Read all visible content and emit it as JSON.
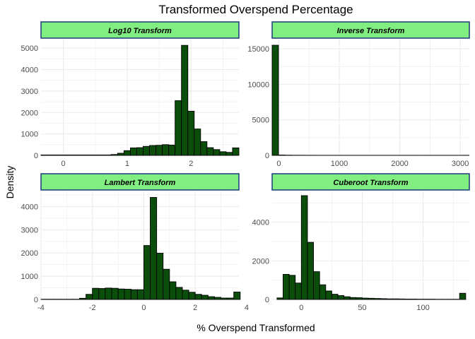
{
  "chart_data": {
    "type": "bar",
    "title": "Transformed Overspend Percentage",
    "xlabel": "% Overspend Transformed",
    "ylabel": "Density",
    "grid": true,
    "colors": {
      "bar_fill": "#0b4d0b",
      "bar_stroke": "#000000",
      "strip_fill": "#80ee80",
      "strip_border": "#1a3a7a",
      "grid": "#ebebeb"
    },
    "panels": [
      {
        "strip": "Log10 Transform",
        "xlim": [
          -0.35,
          2.75
        ],
        "ylim": [
          0,
          5400
        ],
        "x_ticks": [
          0,
          1,
          2
        ],
        "y_ticks": [
          0,
          1000,
          2000,
          3000,
          4000,
          5000
        ],
        "bin_start": -0.35,
        "bin_width": 0.1,
        "values": [
          20,
          20,
          20,
          20,
          20,
          20,
          20,
          20,
          20,
          20,
          20,
          40,
          100,
          220,
          350,
          360,
          420,
          460,
          470,
          500,
          480,
          2550,
          5130,
          2060,
          1230,
          640,
          360,
          270,
          170,
          140,
          350
        ]
      },
      {
        "strip": "Inverse Transform",
        "xlim": [
          -110,
          3150
        ],
        "ylim": [
          0,
          16300
        ],
        "x_ticks": [
          0,
          1000,
          2000,
          3000
        ],
        "y_ticks": [
          0,
          5000,
          10000,
          15000
        ],
        "bin_start": -110,
        "bin_width": 105,
        "values": [
          15500,
          50,
          30,
          20,
          20,
          15,
          15,
          10,
          10,
          10,
          10,
          10,
          10,
          10,
          10,
          10,
          10,
          10,
          10,
          10,
          10,
          10,
          10,
          10,
          10,
          10,
          10,
          10,
          10,
          10,
          15
        ]
      },
      {
        "strip": "Lambert Transform",
        "xlim": [
          -4.0,
          3.7
        ],
        "ylim": [
          0,
          4650
        ],
        "x_ticks": [
          -4,
          -2,
          0,
          2,
          4
        ],
        "y_ticks": [
          0,
          1000,
          2000,
          3000,
          4000
        ],
        "bin_start": -4.0,
        "bin_width": 0.25,
        "values": [
          10,
          10,
          10,
          10,
          10,
          10,
          50,
          220,
          480,
          470,
          490,
          480,
          450,
          440,
          420,
          420,
          2320,
          4390,
          1990,
          1300,
          760,
          520,
          400,
          310,
          220,
          180,
          120,
          90,
          60,
          60,
          320
        ]
      },
      {
        "strip": "Cuberoot Transform",
        "xlim": [
          -24,
          138
        ],
        "ylim": [
          0,
          5600
        ],
        "x_ticks": [
          0,
          50,
          100
        ],
        "y_ticks": [
          0,
          2000,
          4000
        ],
        "bin_start": -20,
        "bin_width": 5,
        "values": [
          80,
          1300,
          1250,
          850,
          5380,
          2960,
          1440,
          760,
          440,
          270,
          200,
          140,
          100,
          90,
          70,
          60,
          50,
          40,
          30,
          30,
          25,
          20,
          20,
          15,
          15,
          15,
          10,
          10,
          10,
          10,
          320
        ]
      }
    ]
  }
}
